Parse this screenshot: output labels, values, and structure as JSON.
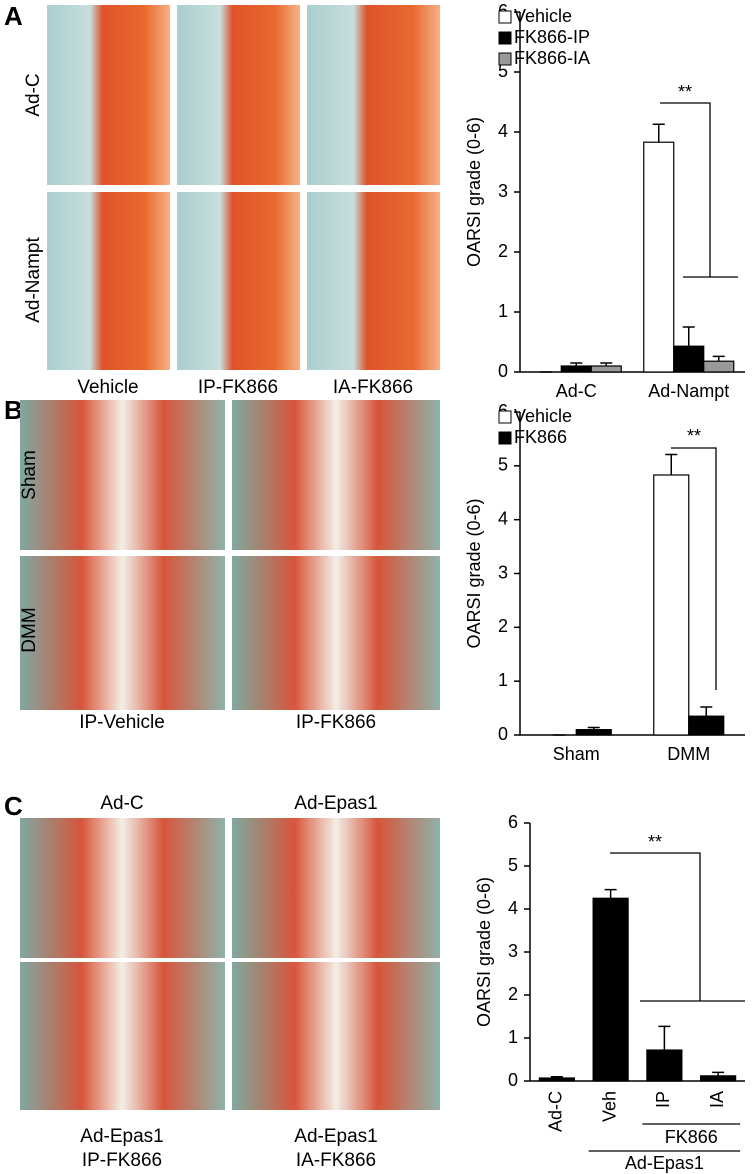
{
  "chart_data": [
    {
      "type": "bar",
      "y_label": "OARSI grade (0-6)",
      "categories": [
        "Ad-C",
        "Ad-Nampt"
      ],
      "series": [
        {
          "name": "Vehicle",
          "color": "#ffffff",
          "values": [
            0,
            3.83
          ],
          "errors": [
            0,
            0.3
          ]
        },
        {
          "name": "FK866-IP",
          "color": "#000000",
          "values": [
            0.1,
            0.43
          ],
          "errors": [
            0.05,
            0.32
          ]
        },
        {
          "name": "FK866-IA",
          "color": "#999999",
          "values": [
            0.1,
            0.18
          ],
          "errors": [
            0.05,
            0.08
          ]
        }
      ],
      "ylim": [
        0,
        6
      ],
      "yticks": [
        0,
        1,
        2,
        3,
        4,
        5,
        6
      ],
      "legend": "top-left",
      "annotation": "**"
    },
    {
      "type": "bar",
      "y_label": "OARSI grade (0-6)",
      "categories": [
        "Sham",
        "DMM"
      ],
      "series": [
        {
          "name": "Vehicle",
          "color": "#ffffff",
          "values": [
            0,
            4.83
          ],
          "errors": [
            0,
            0.38
          ]
        },
        {
          "name": "FK866",
          "color": "#000000",
          "values": [
            0.1,
            0.35
          ],
          "errors": [
            0.04,
            0.17
          ]
        }
      ],
      "ylim": [
        0,
        6
      ],
      "yticks": [
        0,
        1,
        2,
        3,
        4,
        5,
        6
      ],
      "legend": "top-left",
      "annotation": "**"
    },
    {
      "type": "bar",
      "y_label": "OARSI grade (0-6)",
      "categories": [
        "Ad-C",
        "Veh",
        "IP",
        "IA"
      ],
      "series": [
        {
          "color": "#000000",
          "values": [
            0.07,
            4.25,
            0.72,
            0.12
          ],
          "errors": [
            0.03,
            0.2,
            0.55,
            0.08
          ]
        }
      ],
      "ylim": [
        0,
        6
      ],
      "yticks": [
        0,
        1,
        2,
        3,
        4,
        5,
        6
      ],
      "x_label_rotation": 90,
      "group_labels": [
        "FK866",
        "Ad-Epas1"
      ],
      "annotation": "**"
    }
  ],
  "panels": [
    {
      "label": "A",
      "row_labels": [
        "Ad-C",
        "Ad-Nampt"
      ],
      "column_labels": [
        "Vehicle",
        "IP-FK866",
        "IA-FK866"
      ]
    },
    {
      "label": "B",
      "row_labels": [
        "Sham",
        "DMM"
      ],
      "column_labels": [
        "IP-Vehicle",
        "IP-FK866"
      ]
    },
    {
      "label": "C",
      "image_labels": [
        [
          "Ad-C"
        ],
        [
          "Ad-Epas1"
        ],
        [
          "Ad-Epas1",
          "IP-FK866"
        ],
        [
          "Ad-Epas1",
          "IA-FK866"
        ]
      ]
    }
  ]
}
